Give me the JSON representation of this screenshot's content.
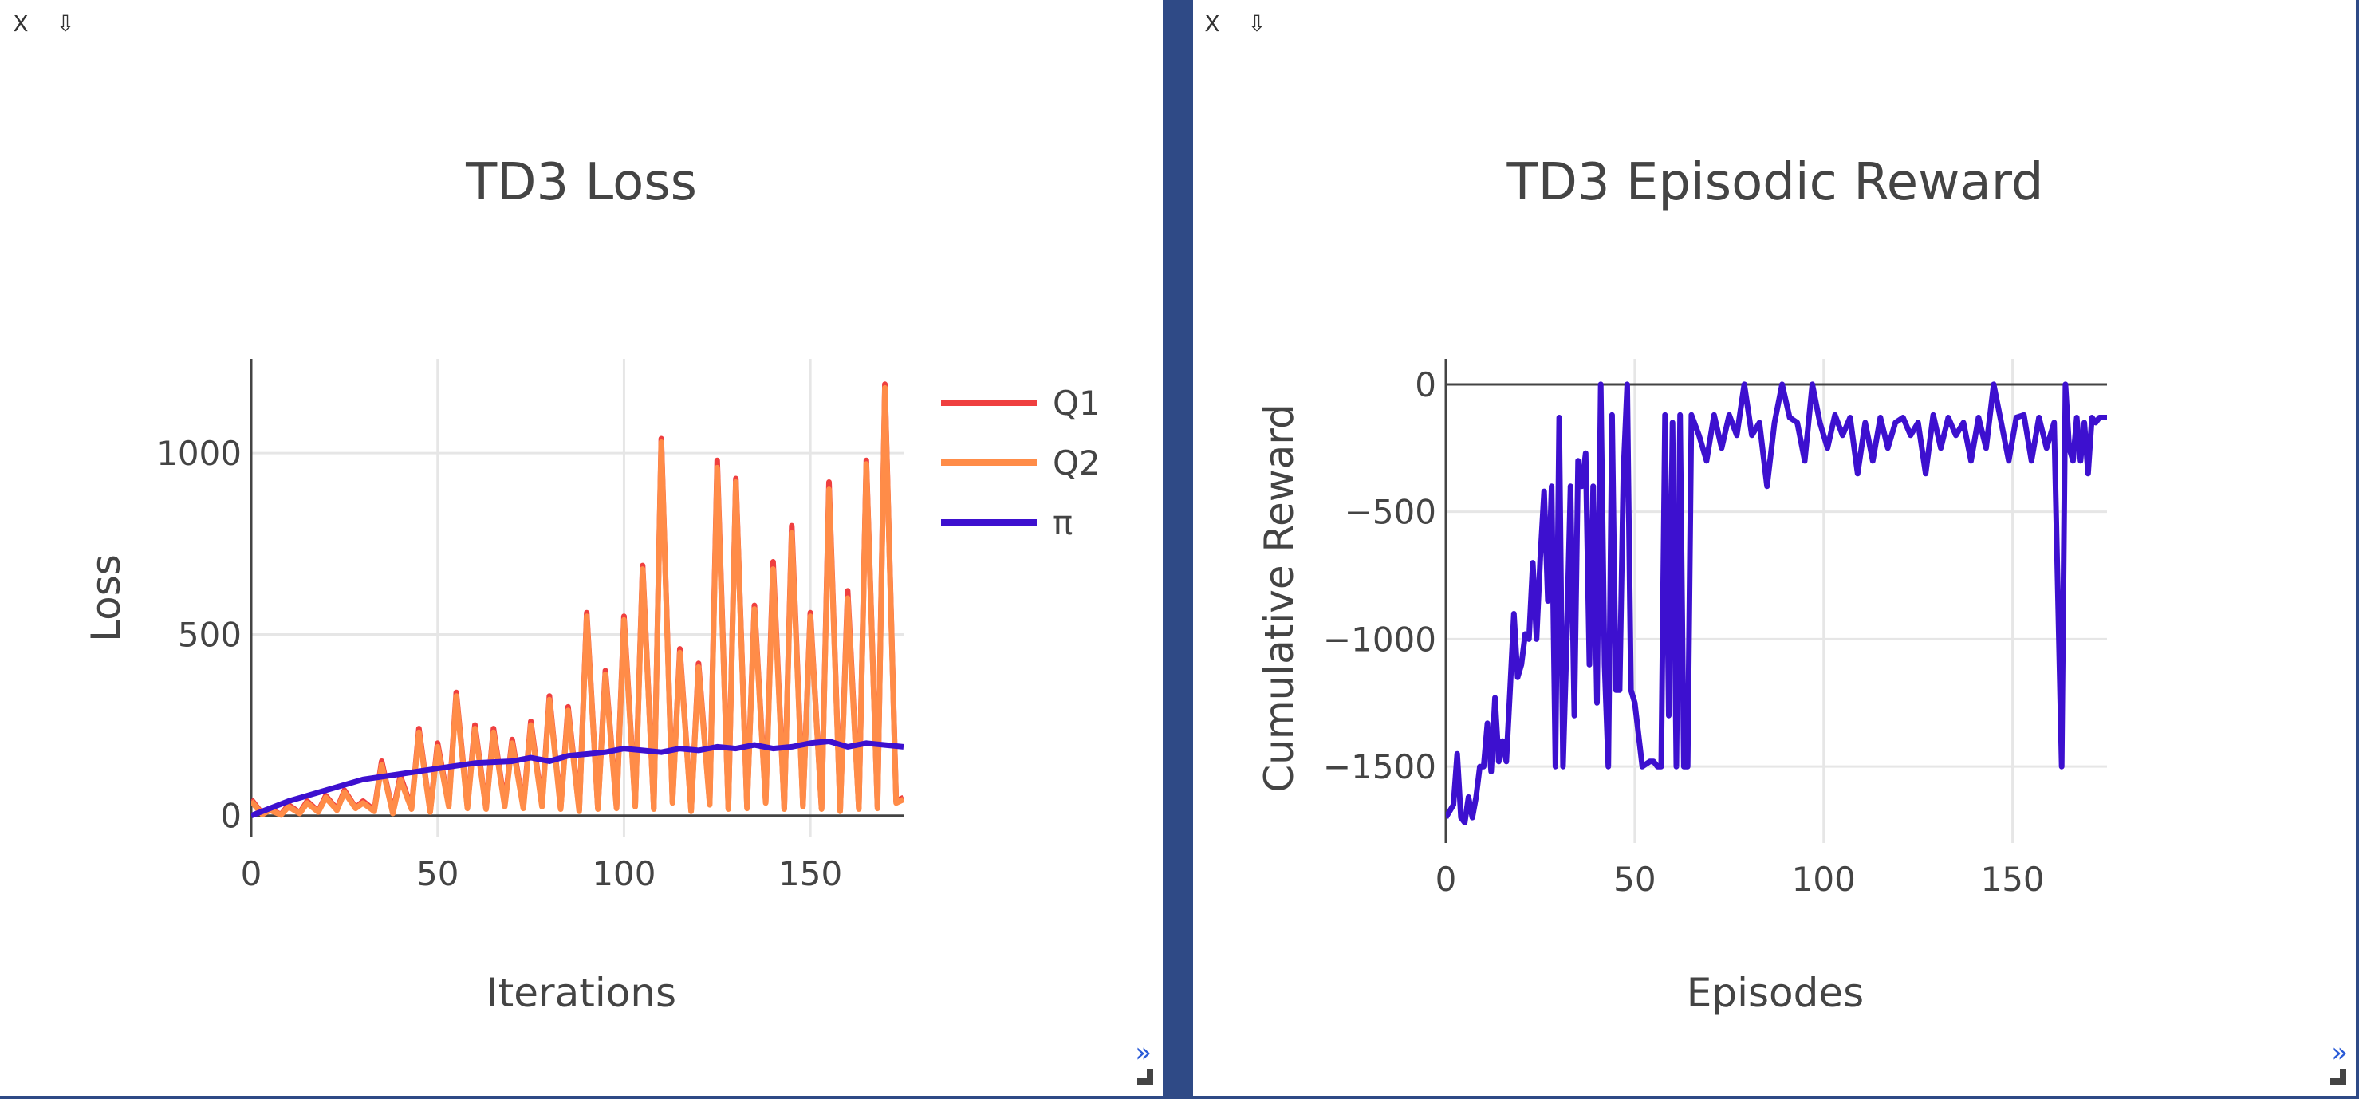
{
  "windows": [
    {
      "close_label": "X",
      "download_label": "⇩",
      "expand_label": "»",
      "icons": {
        "close": "close-icon",
        "download": "download-icon",
        "expand": "expand-icon",
        "resize": "resize-grip-icon"
      }
    },
    {
      "close_label": "X",
      "download_label": "⇩",
      "expand_label": "»",
      "icons": {
        "close": "close-icon",
        "download": "download-icon",
        "expand": "expand-icon",
        "resize": "resize-grip-icon"
      }
    }
  ],
  "chart_data": [
    {
      "type": "line",
      "title": "TD3 Loss",
      "xlabel": "Iterations",
      "ylabel": "Loss",
      "xlim": [
        0,
        175
      ],
      "ylim": [
        -60,
        1260
      ],
      "xticks": [
        0,
        50,
        100,
        150
      ],
      "yticks": [
        0,
        500,
        1000
      ],
      "grid": true,
      "legend": "top-right",
      "series": [
        {
          "name": "Q1",
          "color": "#ef3f3f",
          "x": [
            0,
            3,
            5,
            8,
            10,
            13,
            15,
            18,
            20,
            23,
            25,
            28,
            30,
            33,
            35,
            38,
            40,
            43,
            45,
            48,
            50,
            53,
            55,
            58,
            60,
            63,
            65,
            68,
            70,
            73,
            75,
            78,
            80,
            83,
            85,
            88,
            90,
            93,
            95,
            98,
            100,
            103,
            105,
            108,
            110,
            113,
            115,
            118,
            120,
            123,
            125,
            128,
            130,
            133,
            135,
            138,
            140,
            143,
            145,
            148,
            150,
            153,
            155,
            158,
            160,
            163,
            165,
            168,
            170,
            173,
            175
          ],
          "values": [
            45,
            5,
            18,
            3,
            30,
            8,
            40,
            12,
            55,
            18,
            70,
            22,
            40,
            15,
            150,
            8,
            110,
            20,
            240,
            12,
            200,
            30,
            340,
            25,
            250,
            20,
            240,
            30,
            210,
            25,
            260,
            30,
            330,
            20,
            300,
            15,
            560,
            20,
            400,
            25,
            550,
            30,
            690,
            20,
            1040,
            40,
            460,
            15,
            420,
            35,
            980,
            20,
            930,
            25,
            580,
            40,
            700,
            20,
            800,
            30,
            560,
            20,
            920,
            15,
            620,
            20,
            980,
            25,
            1190,
            40,
            50
          ]
        },
        {
          "name": "Q2",
          "color": "#ff8c48",
          "x": [
            0,
            3,
            5,
            8,
            10,
            13,
            15,
            18,
            20,
            23,
            25,
            28,
            30,
            33,
            35,
            38,
            40,
            43,
            45,
            48,
            50,
            53,
            55,
            58,
            60,
            63,
            65,
            68,
            70,
            73,
            75,
            78,
            80,
            83,
            85,
            88,
            90,
            93,
            95,
            98,
            100,
            103,
            105,
            108,
            110,
            113,
            115,
            118,
            120,
            123,
            125,
            128,
            130,
            133,
            135,
            138,
            140,
            143,
            145,
            148,
            150,
            153,
            155,
            158,
            160,
            163,
            165,
            168,
            170,
            173,
            175
          ],
          "values": [
            40,
            3,
            15,
            2,
            25,
            6,
            35,
            10,
            50,
            15,
            65,
            20,
            35,
            12,
            140,
            6,
            100,
            18,
            230,
            10,
            190,
            25,
            330,
            20,
            240,
            18,
            230,
            25,
            200,
            20,
            250,
            25,
            320,
            18,
            290,
            12,
            550,
            18,
            390,
            20,
            540,
            25,
            680,
            18,
            1030,
            35,
            450,
            12,
            410,
            30,
            960,
            18,
            920,
            20,
            570,
            35,
            680,
            18,
            780,
            25,
            550,
            18,
            900,
            12,
            600,
            18,
            970,
            20,
            1180,
            35,
            45
          ]
        },
        {
          "name": "π",
          "color": "#3d10cf",
          "x": [
            0,
            10,
            20,
            30,
            40,
            50,
            60,
            70,
            75,
            80,
            85,
            90,
            95,
            100,
            105,
            110,
            115,
            120,
            125,
            130,
            135,
            140,
            145,
            150,
            155,
            160,
            165,
            170,
            175
          ],
          "values": [
            0,
            40,
            70,
            100,
            115,
            130,
            145,
            150,
            160,
            150,
            165,
            170,
            175,
            185,
            180,
            175,
            185,
            180,
            190,
            185,
            195,
            185,
            190,
            200,
            205,
            190,
            200,
            195,
            190
          ]
        }
      ]
    },
    {
      "type": "line",
      "title": "TD3 Episodic Reward",
      "xlabel": "Episodes",
      "ylabel": "Cumulative Reward",
      "xlim": [
        0,
        175
      ],
      "ylim": [
        -1800,
        100
      ],
      "xticks": [
        0,
        50,
        100,
        150
      ],
      "yticks": [
        0,
        -500,
        -1000,
        -1500
      ],
      "grid": true,
      "series": [
        {
          "color": "#3d10cf",
          "x": [
            0,
            2,
            3,
            4,
            5,
            6,
            7,
            8,
            9,
            10,
            11,
            12,
            13,
            14,
            15,
            16,
            17,
            18,
            19,
            20,
            21,
            22,
            23,
            24,
            25,
            26,
            27,
            28,
            29,
            30,
            31,
            32,
            33,
            34,
            35,
            36,
            37,
            38,
            39,
            40,
            41,
            42,
            43,
            44,
            45,
            46,
            47,
            48,
            49,
            50,
            52,
            54,
            55,
            56,
            57,
            58,
            59,
            60,
            61,
            62,
            63,
            64,
            65,
            67,
            69,
            71,
            73,
            75,
            77,
            79,
            81,
            83,
            85,
            87,
            89,
            91,
            93,
            95,
            97,
            99,
            101,
            103,
            105,
            107,
            109,
            111,
            113,
            115,
            117,
            119,
            121,
            123,
            125,
            127,
            129,
            131,
            133,
            135,
            137,
            139,
            141,
            143,
            145,
            147,
            149,
            151,
            153,
            155,
            157,
            159,
            161,
            163,
            164,
            165,
            166,
            167,
            168,
            169,
            170,
            171,
            172,
            173,
            175
          ],
          "values": [
            -1700,
            -1650,
            -1450,
            -1700,
            -1720,
            -1620,
            -1700,
            -1620,
            -1500,
            -1500,
            -1330,
            -1520,
            -1230,
            -1480,
            -1400,
            -1480,
            -1200,
            -900,
            -1150,
            -1100,
            -980,
            -1000,
            -700,
            -1000,
            -680,
            -420,
            -850,
            -400,
            -1500,
            -130,
            -1500,
            -1000,
            -400,
            -1300,
            -300,
            -400,
            -270,
            -1100,
            -400,
            -1250,
            0,
            -1100,
            -1500,
            -120,
            -1200,
            -1200,
            -350,
            0,
            -1200,
            -1250,
            -1500,
            -1480,
            -1480,
            -1500,
            -1500,
            -120,
            -1300,
            -150,
            -1500,
            -120,
            -1500,
            -1500,
            -120,
            -200,
            -300,
            -120,
            -250,
            -120,
            -200,
            0,
            -200,
            -150,
            -400,
            -150,
            0,
            -130,
            -150,
            -300,
            0,
            -150,
            -250,
            -120,
            -200,
            -130,
            -350,
            -150,
            -300,
            -130,
            -250,
            -150,
            -130,
            -200,
            -150,
            -350,
            -120,
            -250,
            -130,
            -200,
            -150,
            -300,
            -130,
            -250,
            0,
            -150,
            -300,
            -130,
            -120,
            -300,
            -130,
            -250,
            -150,
            -1500,
            0,
            -250,
            -300,
            -130,
            -300,
            -150,
            -350,
            -130,
            -150,
            -130,
            -130
          ]
        }
      ]
    }
  ]
}
